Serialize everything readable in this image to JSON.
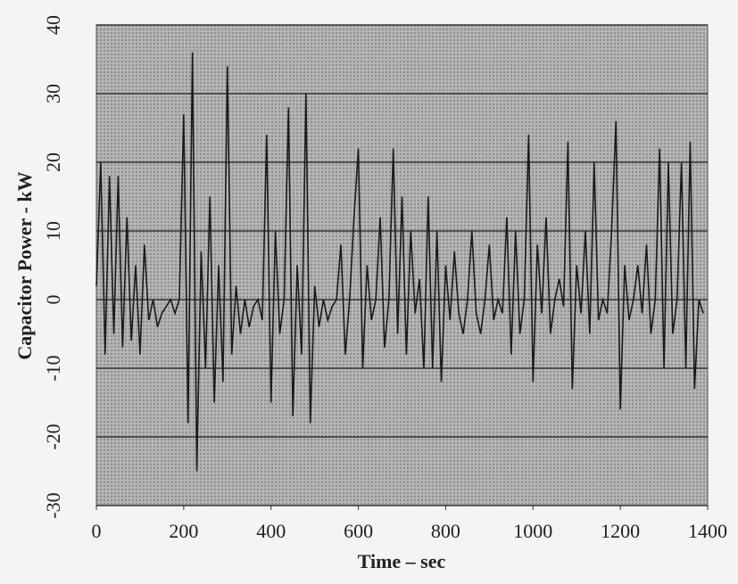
{
  "chart_data": {
    "type": "line",
    "xlabel": "Time – sec",
    "ylabel": "Capacitor Power  - kW",
    "x": [
      0,
      10,
      20,
      30,
      40,
      50,
      60,
      70,
      80,
      90,
      100,
      110,
      120,
      130,
      140,
      150,
      160,
      170,
      180,
      190,
      200,
      210,
      220,
      230,
      240,
      250,
      260,
      270,
      280,
      290,
      300,
      310,
      320,
      330,
      340,
      350,
      360,
      370,
      380,
      390,
      400,
      410,
      420,
      430,
      440,
      450,
      460,
      470,
      480,
      490,
      500,
      510,
      520,
      530,
      540,
      550,
      560,
      570,
      580,
      590,
      600,
      610,
      620,
      630,
      640,
      650,
      660,
      670,
      680,
      690,
      700,
      710,
      720,
      730,
      740,
      750,
      760,
      770,
      780,
      790,
      800,
      810,
      820,
      830,
      840,
      850,
      860,
      870,
      880,
      890,
      900,
      910,
      920,
      930,
      940,
      950,
      960,
      970,
      980,
      990,
      1000,
      1010,
      1020,
      1030,
      1040,
      1050,
      1060,
      1070,
      1080,
      1090,
      1100,
      1110,
      1120,
      1130,
      1140,
      1150,
      1160,
      1170,
      1180,
      1190,
      1200,
      1210,
      1220,
      1230,
      1240,
      1250,
      1260,
      1270,
      1280,
      1290,
      1300,
      1310,
      1320,
      1330,
      1340,
      1350,
      1360,
      1370,
      1380,
      1390
    ],
    "series": [
      {
        "name": "Capacitor Power",
        "color": "#1a1a1a",
        "values": [
          2,
          20,
          -8,
          18,
          -5,
          18,
          -7,
          12,
          -6,
          5,
          -8,
          8,
          -3,
          0,
          -4,
          -2,
          -1,
          0,
          -2,
          0,
          27,
          -18,
          36,
          -25,
          7,
          -10,
          15,
          -15,
          5,
          -12,
          34,
          -8,
          2,
          -5,
          0,
          -4,
          -1,
          0,
          -3,
          24,
          -15,
          10,
          -5,
          0,
          28,
          -17,
          5,
          -8,
          30,
          -18,
          2,
          -4,
          0,
          -3,
          -1,
          0,
          8,
          -8,
          0,
          12,
          22,
          -10,
          5,
          -3,
          0,
          12,
          -7,
          0,
          22,
          -5,
          15,
          -8,
          10,
          -2,
          3,
          -10,
          15,
          -10,
          10,
          -12,
          5,
          -3,
          7,
          -2,
          -5,
          0,
          10,
          -2,
          -5,
          0,
          8,
          -3,
          0,
          -2,
          12,
          -8,
          10,
          -5,
          0,
          24,
          -12,
          8,
          -2,
          12,
          -5,
          0,
          3,
          -1,
          23,
          -13,
          5,
          -2,
          10,
          -5,
          20,
          -3,
          0,
          -2,
          10,
          26,
          -16,
          5,
          -3,
          0,
          5,
          -2,
          8,
          -5,
          0,
          22,
          -10,
          20,
          -5,
          0,
          20,
          -10,
          23,
          -13,
          0,
          -2
        ]
      }
    ],
    "xlim": [
      0,
      1400
    ],
    "xticks": [
      0,
      200,
      400,
      600,
      800,
      1000,
      1200,
      1400
    ],
    "ylim": [
      -30,
      40
    ],
    "yticks": [
      -30,
      -20,
      -10,
      0,
      10,
      20,
      30,
      40
    ],
    "grid": true
  }
}
